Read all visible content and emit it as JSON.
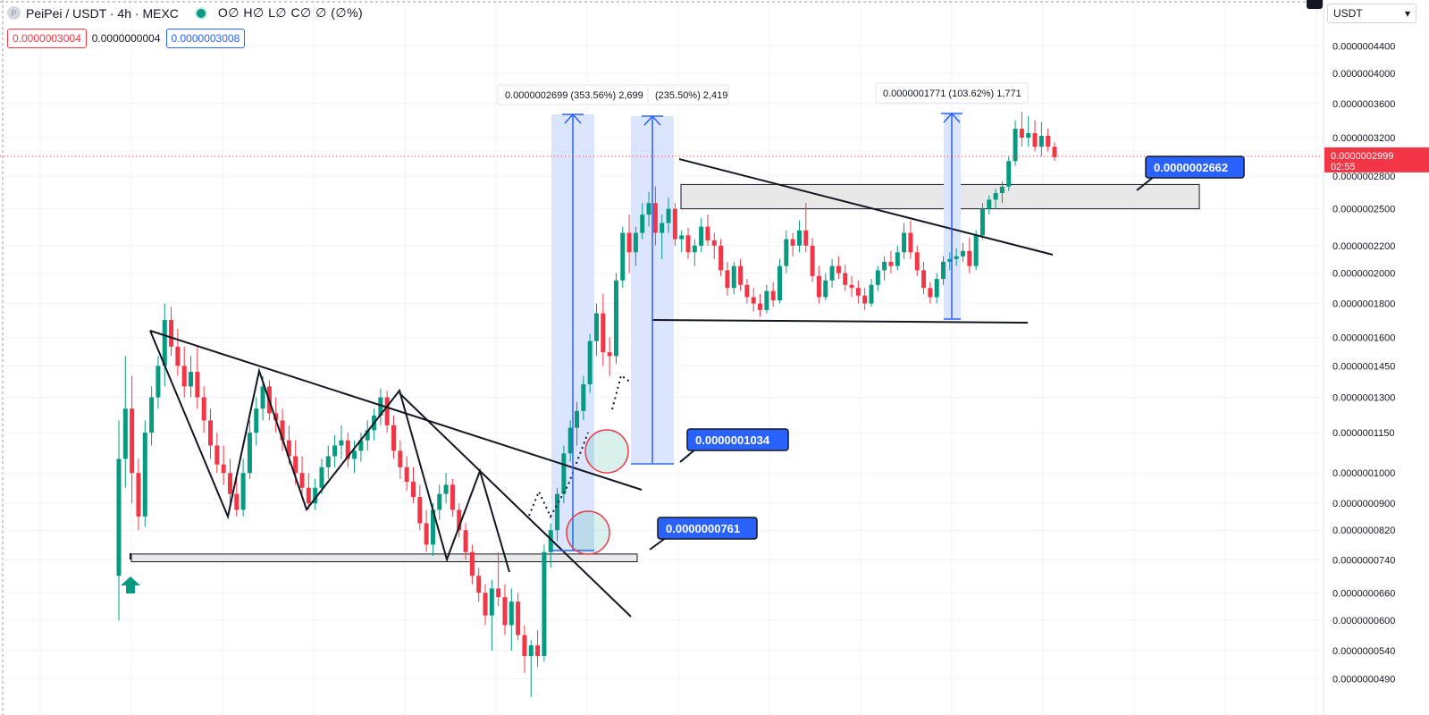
{
  "header": {
    "symbol": "PeiPei / USDT · 4h · MEXC",
    "ohlc": "O∅ H∅ L∅ C∅ ∅ (∅%)",
    "coin_glyph": "P",
    "sell_price": "0.0000003004",
    "spread": "0.0000000004",
    "buy_price": "0.0000003008"
  },
  "currency": {
    "label": "USDT",
    "icon": "chevron-down-icon"
  },
  "current_price": {
    "value": "0.0000002999",
    "countdown": "02:55"
  },
  "colors": {
    "up": "#089981",
    "down": "#f23645",
    "accent": "#2962ff",
    "measure_fill": "#dbe5fd",
    "label_bg": "#2962ff",
    "zone_fill": "#e8e8e8"
  },
  "chart_data": {
    "type": "candlestick",
    "title": "PeiPei / USDT · 4h · MEXC",
    "y_scale": "log",
    "ylim": [
      4.6e-08,
      4.7e-08
    ],
    "y_ticks": [
      {
        "v": 4.4e-07,
        "label": "0.0000004400"
      },
      {
        "v": 4e-07,
        "label": "0.0000004000"
      },
      {
        "v": 3.6e-07,
        "label": "0.0000003600"
      },
      {
        "v": 3.2e-07,
        "label": "0.0000003200"
      },
      {
        "v": 2.8e-07,
        "label": "0.0000002800"
      },
      {
        "v": 2.5e-07,
        "label": "0.0000002500"
      },
      {
        "v": 2.2e-07,
        "label": "0.0000002200"
      },
      {
        "v": 2e-07,
        "label": "0.0000002000"
      },
      {
        "v": 1.8e-07,
        "label": "0.0000001800"
      },
      {
        "v": 1.6e-07,
        "label": "0.0000001600"
      },
      {
        "v": 1.45e-07,
        "label": "0.0000001450"
      },
      {
        "v": 1.3e-07,
        "label": "0.0000001300"
      },
      {
        "v": 1.15e-07,
        "label": "0.0000001150"
      },
      {
        "v": 1e-07,
        "label": "0.0000001000"
      },
      {
        "v": 9e-08,
        "label": "0.0000000900"
      },
      {
        "v": 8.2e-08,
        "label": "0.0000000820"
      },
      {
        "v": 7.4e-08,
        "label": "0.0000000740"
      },
      {
        "v": 6.6e-08,
        "label": "0.0000000660"
      },
      {
        "v": 6e-08,
        "label": "0.0000000600"
      },
      {
        "v": 5.4e-08,
        "label": "0.0000000540"
      },
      {
        "v": 4.9e-08,
        "label": "0.0000000490"
      }
    ],
    "grid": true,
    "candles": [
      [
        7e-08,
        1.2e-07,
        6e-08,
        1.05e-07
      ],
      [
        1.05e-07,
        1.5e-07,
        9.5e-08,
        1.25e-07
      ],
      [
        1.25e-07,
        1.4e-07,
        9e-08,
        1e-07
      ],
      [
        1e-07,
        1.05e-07,
        8.2e-08,
        8.6e-08
      ],
      [
        8.6e-08,
        1.2e-07,
        8.3e-08,
        1.15e-07
      ],
      [
        1.15e-07,
        1.35e-07,
        1.1e-07,
        1.3e-07
      ],
      [
        1.3e-07,
        1.5e-07,
        1.25e-07,
        1.45e-07
      ],
      [
        1.45e-07,
        1.8e-07,
        1.35e-07,
        1.7e-07
      ],
      [
        1.7e-07,
        1.78e-07,
        1.5e-07,
        1.55e-07
      ],
      [
        1.55e-07,
        1.65e-07,
        1.4e-07,
        1.45e-07
      ],
      [
        1.45e-07,
        1.55e-07,
        1.3e-07,
        1.35e-07
      ],
      [
        1.35e-07,
        1.5e-07,
        1.3e-07,
        1.42e-07
      ],
      [
        1.42e-07,
        1.55e-07,
        1.25e-07,
        1.3e-07
      ],
      [
        1.3e-07,
        1.35e-07,
        1.15e-07,
        1.2e-07
      ],
      [
        1.2e-07,
        1.25e-07,
        1.05e-07,
        1.1e-07
      ],
      [
        1.1e-07,
        1.15e-07,
        1e-07,
        1.03e-07
      ],
      [
        1.03e-07,
        1.1e-07,
        9.6e-08,
        1e-07
      ],
      [
        1e-07,
        1.05e-07,
        9e-08,
        9.3e-08
      ],
      [
        9.3e-08,
        1e-07,
        8.6e-08,
        8.8e-08
      ],
      [
        8.8e-08,
        1.05e-07,
        8.6e-08,
        1e-07
      ],
      [
        1e-07,
        1.2e-07,
        9.8e-08,
        1.15e-07
      ],
      [
        1.15e-07,
        1.3e-07,
        1.1e-07,
        1.25e-07
      ],
      [
        1.25e-07,
        1.4e-07,
        1.2e-07,
        1.35e-07
      ],
      [
        1.35e-07,
        1.38e-07,
        1.2e-07,
        1.23e-07
      ],
      [
        1.23e-07,
        1.3e-07,
        1.15e-07,
        1.2e-07
      ],
      [
        1.2e-07,
        1.25e-07,
        1.08e-07,
        1.12e-07
      ],
      [
        1.12e-07,
        1.18e-07,
        1.03e-07,
        1.06e-07
      ],
      [
        1.06e-07,
        1.12e-07,
        9.6e-08,
        1e-07
      ],
      [
        1e-07,
        1.06e-07,
        9.2e-08,
        9.5e-08
      ],
      [
        9.5e-08,
        1e-07,
        8.8e-08,
        9e-08
      ],
      [
        9e-08,
        9.8e-08,
        8.8e-08,
        9.5e-08
      ],
      [
        9.5e-08,
        1.05e-07,
        9.3e-08,
        1.02e-07
      ],
      [
        1.02e-07,
        1.1e-07,
        9.8e-08,
        1.06e-07
      ],
      [
        1.06e-07,
        1.14e-07,
        1.02e-07,
        1.1e-07
      ],
      [
        1.1e-07,
        1.18e-07,
        1.05e-07,
        1.12e-07
      ],
      [
        1.12e-07,
        1.15e-07,
        1.02e-07,
        1.05e-07
      ],
      [
        1.05e-07,
        1.12e-07,
        1e-07,
        1.08e-07
      ],
      [
        1.08e-07,
        1.15e-07,
        1.04e-07,
        1.12e-07
      ],
      [
        1.12e-07,
        1.2e-07,
        1.08e-07,
        1.16e-07
      ],
      [
        1.16e-07,
        1.25e-07,
        1.12e-07,
        1.22e-07
      ],
      [
        1.22e-07,
        1.34e-07,
        1.18e-07,
        1.3e-07
      ],
      [
        1.3e-07,
        1.33e-07,
        1.15e-07,
        1.18e-07
      ],
      [
        1.18e-07,
        1.22e-07,
        1.05e-07,
        1.08e-07
      ],
      [
        1.08e-07,
        1.12e-07,
        9.8e-08,
        1.02e-07
      ],
      [
        1.02e-07,
        1.06e-07,
        9.4e-08,
        9.7e-08
      ],
      [
        9.7e-08,
        1.02e-07,
        9e-08,
        9.2e-08
      ],
      [
        9.2e-08,
        9.6e-08,
        8.2e-08,
        8.4e-08
      ],
      [
        8.4e-08,
        8.8e-08,
        7.6e-08,
        7.8e-08
      ],
      [
        7.8e-08,
        9e-08,
        7.5e-08,
        8.8e-08
      ],
      [
        8.8e-08,
        9.6e-08,
        8.5e-08,
        9.3e-08
      ],
      [
        9.3e-08,
        1e-07,
        9e-08,
        9.6e-08
      ],
      [
        9.6e-08,
        9.8e-08,
        8.6e-08,
        8.8e-08
      ],
      [
        8.8e-08,
        9e-08,
        8e-08,
        8.2e-08
      ],
      [
        8.2e-08,
        8.4e-08,
        7.4e-08,
        7.6e-08
      ],
      [
        7.6e-08,
        7.8e-08,
        6.8e-08,
        7e-08
      ],
      [
        7e-08,
        7.2e-08,
        6.4e-08,
        6.6e-08
      ],
      [
        6.6e-08,
        6.8e-08,
        5.9e-08,
        6.1e-08
      ],
      [
        6.1e-08,
        6.9e-08,
        5.4e-08,
        6.7e-08
      ],
      [
        6.7e-08,
        7.6e-08,
        6.3e-08,
        6.5e-08
      ],
      [
        6.5e-08,
        6.8e-08,
        5.7e-08,
        5.9e-08
      ],
      [
        5.9e-08,
        6.7e-08,
        5.4e-08,
        6.4e-08
      ],
      [
        6.4e-08,
        6.6e-08,
        5.6e-08,
        5.7e-08
      ],
      [
        5.7e-08,
        5.9e-08,
        5e-08,
        5.3e-08
      ],
      [
        5.3e-08,
        5.6e-08,
        4.6e-08,
        5.5e-08
      ],
      [
        5.5e-08,
        5.8e-08,
        5.1e-08,
        5.3e-08
      ],
      [
        5.3e-08,
        7.8e-08,
        5.2e-08,
        7.6e-08
      ],
      [
        7.6e-08,
        8.4e-08,
        7.2e-08,
        8.2e-08
      ],
      [
        8.2e-08,
        9.5e-08,
        7.9e-08,
        9.3e-08
      ],
      [
        9.3e-08,
        1.1e-07,
        9e-08,
        1.07e-07
      ],
      [
        1.07e-07,
        1.2e-07,
        1.04e-07,
        1.17e-07
      ],
      [
        1.17e-07,
        1.28e-07,
        1.1e-07,
        1.24e-07
      ],
      [
        1.24e-07,
        1.4e-07,
        1.2e-07,
        1.36e-07
      ],
      [
        1.36e-07,
        1.62e-07,
        1.32e-07,
        1.58e-07
      ],
      [
        1.58e-07,
        1.8e-07,
        1.5e-07,
        1.74e-07
      ],
      [
        1.74e-07,
        1.86e-07,
        1.45e-07,
        1.52e-07
      ],
      [
        1.52e-07,
        1.6e-07,
        1.4e-07,
        1.5e-07
      ],
      [
        1.5e-07,
        2e-07,
        1.46e-07,
        1.95e-07
      ],
      [
        1.95e-07,
        2.35e-07,
        1.9e-07,
        2.3e-07
      ],
      [
        2.3e-07,
        2.45e-07,
        2e-07,
        2.15e-07
      ],
      [
        2.15e-07,
        2.35e-07,
        2.05e-07,
        2.3e-07
      ],
      [
        2.3e-07,
        2.55e-07,
        2.25e-07,
        2.45e-07
      ],
      [
        2.45e-07,
        2.65e-07,
        2.35e-07,
        2.55e-07
      ],
      [
        2.55e-07,
        2.7e-07,
        2.2e-07,
        2.3e-07
      ],
      [
        2.3e-07,
        2.45e-07,
        2.1e-07,
        2.38e-07
      ],
      [
        2.38e-07,
        2.6e-07,
        2.3e-07,
        2.5e-07
      ],
      [
        2.5e-07,
        2.55e-07,
        2.2e-07,
        2.25e-07
      ],
      [
        2.25e-07,
        2.32e-07,
        2.15e-07,
        2.28e-07
      ],
      [
        2.28e-07,
        2.34e-07,
        2.1e-07,
        2.15e-07
      ],
      [
        2.15e-07,
        2.25e-07,
        2.05e-07,
        2.2e-07
      ],
      [
        2.2e-07,
        2.42e-07,
        2.15e-07,
        2.35e-07
      ],
      [
        2.35e-07,
        2.45e-07,
        2.2e-07,
        2.24e-07
      ],
      [
        2.24e-07,
        2.3e-07,
        2.1e-07,
        2.2e-07
      ],
      [
        2.2e-07,
        2.25e-07,
        1.98e-07,
        2.02e-07
      ],
      [
        2.02e-07,
        2.08e-07,
        1.85e-07,
        1.9e-07
      ],
      [
        1.9e-07,
        2.08e-07,
        1.86e-07,
        2.05e-07
      ],
      [
        2.05e-07,
        2.1e-07,
        1.88e-07,
        1.92e-07
      ],
      [
        1.92e-07,
        1.96e-07,
        1.8e-07,
        1.84e-07
      ],
      [
        1.84e-07,
        1.9e-07,
        1.75e-07,
        1.8e-07
      ],
      [
        1.8e-07,
        1.86e-07,
        1.72e-07,
        1.76e-07
      ],
      [
        1.76e-07,
        1.92e-07,
        1.74e-07,
        1.88e-07
      ],
      [
        1.88e-07,
        1.94e-07,
        1.78e-07,
        1.82e-07
      ],
      [
        1.82e-07,
        2.1e-07,
        1.8e-07,
        2.05e-07
      ],
      [
        2.05e-07,
        2.32e-07,
        2e-07,
        2.25e-07
      ],
      [
        2.25e-07,
        2.3e-07,
        2.12e-07,
        2.2e-07
      ],
      [
        2.2e-07,
        2.4e-07,
        2.15e-07,
        2.32e-07
      ],
      [
        2.32e-07,
        2.55e-07,
        2.15e-07,
        2.2e-07
      ],
      [
        2.2e-07,
        2.26e-07,
        1.94e-07,
        1.98e-07
      ],
      [
        1.98e-07,
        2.05e-07,
        1.8e-07,
        1.84e-07
      ],
      [
        1.84e-07,
        2e-07,
        1.82e-07,
        1.95e-07
      ],
      [
        1.95e-07,
        2.1e-07,
        1.9e-07,
        2.05e-07
      ],
      [
        2.05e-07,
        2.12e-07,
        1.96e-07,
        2e-07
      ],
      [
        2e-07,
        2.06e-07,
        1.88e-07,
        1.92e-07
      ],
      [
        1.92e-07,
        1.98e-07,
        1.84e-07,
        1.9e-07
      ],
      [
        1.9e-07,
        1.95e-07,
        1.8e-07,
        1.85e-07
      ],
      [
        1.85e-07,
        1.9e-07,
        1.76e-07,
        1.8e-07
      ],
      [
        1.8e-07,
        1.96e-07,
        1.78e-07,
        1.92e-07
      ],
      [
        1.92e-07,
        2.05e-07,
        1.88e-07,
        2.02e-07
      ],
      [
        2.02e-07,
        2.12e-07,
        1.95e-07,
        2.08e-07
      ],
      [
        2.08e-07,
        2.16e-07,
        2e-07,
        2.05e-07
      ],
      [
        2.05e-07,
        2.2e-07,
        2.02e-07,
        2.15e-07
      ],
      [
        2.15e-07,
        2.38e-07,
        2.1e-07,
        2.3e-07
      ],
      [
        2.3e-07,
        2.4e-07,
        2.1e-07,
        2.15e-07
      ],
      [
        2.15e-07,
        2.2e-07,
        1.98e-07,
        2.02e-07
      ],
      [
        2.02e-07,
        2.08e-07,
        1.86e-07,
        1.9e-07
      ],
      [
        1.9e-07,
        1.94e-07,
        1.8e-07,
        1.84e-07
      ],
      [
        1.84e-07,
        2e-07,
        1.8e-07,
        1.96e-07
      ],
      [
        1.96e-07,
        2.12e-07,
        1.92e-07,
        2.08e-07
      ],
      [
        2.08e-07,
        2.15e-07,
        2.02e-07,
        2.1e-07
      ],
      [
        2.1e-07,
        2.18e-07,
        2.05e-07,
        2.12e-07
      ],
      [
        2.12e-07,
        2.22e-07,
        2.08e-07,
        2.16e-07
      ],
      [
        2.16e-07,
        2.26e-07,
        2e-07,
        2.05e-07
      ],
      [
        2.05e-07,
        2.32e-07,
        2.02e-07,
        2.28e-07
      ],
      [
        2.28e-07,
        2.55e-07,
        2.25e-07,
        2.5e-07
      ],
      [
        2.5e-07,
        2.62e-07,
        2.45e-07,
        2.58e-07
      ],
      [
        2.58e-07,
        2.68e-07,
        2.5e-07,
        2.64e-07
      ],
      [
        2.64e-07,
        2.75e-07,
        2.55e-07,
        2.7e-07
      ],
      [
        2.7e-07,
        3e-07,
        2.66e-07,
        2.95e-07
      ],
      [
        2.95e-07,
        3.4e-07,
        2.9e-07,
        3.3e-07
      ],
      [
        3.3e-07,
        3.5e-07,
        3.1e-07,
        3.2e-07
      ],
      [
        3.2e-07,
        3.45e-07,
        3.1e-07,
        3.25e-07
      ],
      [
        3.25e-07,
        3.4e-07,
        3.05e-07,
        3.1e-07
      ],
      [
        3.1e-07,
        3.38e-07,
        3e-07,
        3.22e-07
      ],
      [
        3.22e-07,
        3.3e-07,
        3.05e-07,
        3.1e-07
      ],
      [
        3.1e-07,
        3.15e-07,
        2.95e-07,
        2.99e-07
      ]
    ],
    "annotations": {
      "measure_labels": [
        "0.0000002699 (353.56%) 2,699",
        "(235.50%) 2,419",
        "0.0000001771 (103.62%) 1,771"
      ],
      "price_labels": [
        "0.0000002662",
        "0.0000001034",
        "0.0000000761"
      ],
      "zones": [
        {
          "from": 7.35e-08,
          "to": 7.55e-08
        },
        {
          "from": 2.5e-07,
          "to": 2.72e-07
        }
      ]
    }
  }
}
